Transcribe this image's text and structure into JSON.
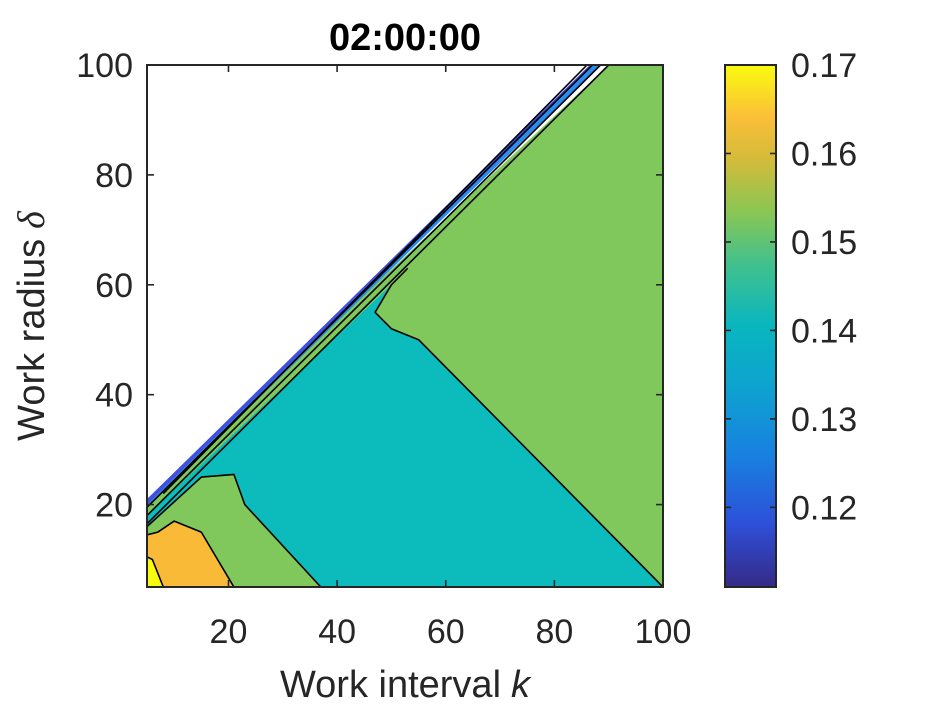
{
  "chart_data": {
    "type": "contour",
    "title": "02:00:00",
    "xlabel": "Work interval",
    "xlabel_var": "k",
    "ylabel": "Work radius",
    "ylabel_var": "δ",
    "xlim": [
      5,
      100
    ],
    "ylim": [
      5,
      100
    ],
    "xticks": [
      20,
      40,
      60,
      80,
      100
    ],
    "yticks": [
      20,
      40,
      60,
      80,
      100
    ],
    "colorbar": {
      "limits": [
        0.111,
        0.17
      ],
      "ticks": [
        0.12,
        0.13,
        0.14,
        0.15,
        0.16,
        0.17
      ],
      "tick_labels": [
        "0.12",
        "0.13",
        "0.14",
        "0.15",
        "0.16",
        "0.17"
      ],
      "colormap": "parula"
    },
    "regions": [
      {
        "level": 0.15,
        "color": "#80c85c",
        "polygon": [
          [
            5,
            16.5
          ],
          [
            5,
            21
          ],
          [
            90,
            100
          ],
          [
            100,
            100
          ],
          [
            100,
            5
          ],
          [
            5,
            5
          ]
        ]
      },
      {
        "level": 0.14,
        "color": "#0cbcbc",
        "polygon": [
          [
            5,
            18
          ],
          [
            5,
            5
          ],
          [
            100,
            5
          ],
          [
            55,
            50
          ],
          [
            50,
            52
          ],
          [
            47,
            55
          ],
          [
            50,
            60
          ],
          [
            5,
            18
          ]
        ]
      },
      {
        "level": 0.15,
        "color": "#80c85c",
        "polygon": [
          [
            5,
            14.5
          ],
          [
            5,
            5
          ],
          [
            37,
            5
          ],
          [
            23,
            20
          ],
          [
            21,
            25.5
          ],
          [
            15,
            25
          ],
          [
            5,
            16
          ]
        ]
      },
      {
        "level": 0.16,
        "color": "#f9ba38",
        "polygon": [
          [
            5,
            5
          ],
          [
            5,
            14.5
          ],
          [
            7,
            15
          ],
          [
            10,
            17
          ],
          [
            15,
            15
          ],
          [
            21,
            5
          ]
        ]
      },
      {
        "level": 0.17,
        "color": "#f9fb0e",
        "polygon": [
          [
            5,
            5
          ],
          [
            5,
            10.5
          ],
          [
            6,
            10
          ],
          [
            8,
            5
          ]
        ]
      },
      {
        "level": 0.13,
        "color": "#2a8cf0",
        "polygon": [
          [
            5,
            19.5
          ],
          [
            5,
            21
          ],
          [
            87,
            100
          ],
          [
            88.5,
            100
          ]
        ]
      },
      {
        "level": 0.12,
        "color": "#4050e0",
        "polygon": [
          [
            5,
            20
          ],
          [
            5,
            21
          ],
          [
            86.5,
            100
          ],
          [
            87,
            100
          ]
        ]
      }
    ],
    "contour_lines": [
      [
        [
          5,
          16.5
        ],
        [
          90,
          100
        ]
      ],
      [
        [
          5,
          18
        ],
        [
          88.5,
          100
        ]
      ],
      [
        [
          5,
          19.5
        ],
        [
          87,
          100
        ]
      ],
      [
        [
          8,
          22
        ],
        [
          86,
          100
        ]
      ],
      [
        [
          100,
          5
        ],
        [
          55,
          50
        ],
        [
          50,
          52
        ],
        [
          47,
          55
        ],
        [
          50,
          60
        ],
        [
          53,
          63
        ]
      ],
      [
        [
          5,
          14.5
        ],
        [
          7,
          15
        ],
        [
          10,
          17
        ],
        [
          15,
          15
        ],
        [
          21,
          5
        ]
      ],
      [
        [
          5,
          16
        ],
        [
          15,
          25
        ],
        [
          21,
          25.5
        ],
        [
          23,
          20
        ],
        [
          37,
          5
        ]
      ],
      [
        [
          5,
          10.5
        ],
        [
          6,
          10
        ],
        [
          8,
          5
        ]
      ]
    ]
  }
}
